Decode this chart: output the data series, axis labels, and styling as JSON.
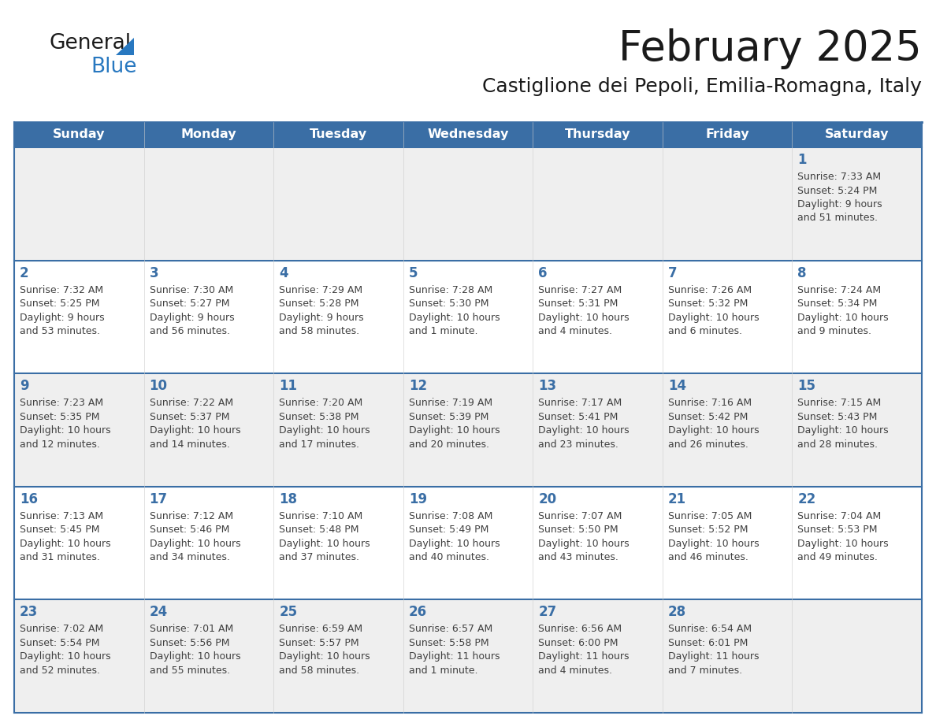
{
  "title": "February 2025",
  "subtitle": "Castiglione dei Pepoli, Emilia-Romagna, Italy",
  "days_of_week": [
    "Sunday",
    "Monday",
    "Tuesday",
    "Wednesday",
    "Thursday",
    "Friday",
    "Saturday"
  ],
  "header_bg_color": "#3A6EA5",
  "header_text_color": "#FFFFFF",
  "row_bg_light": "#EFEFEF",
  "row_bg_white": "#FFFFFF",
  "day_num_color": "#3A6EA5",
  "info_text_color": "#404040",
  "border_color": "#3A6EA5",
  "title_color": "#1A1A1A",
  "subtitle_color": "#1A1A1A",
  "logo_general_color": "#1A1A1A",
  "logo_blue_color": "#2878C0",
  "calendar_data": [
    {
      "day": 1,
      "col": 6,
      "row": 0,
      "sunrise": "7:33 AM",
      "sunset": "5:24 PM",
      "daylight_h": "9",
      "daylight_m": "51",
      "plural_m": true
    },
    {
      "day": 2,
      "col": 0,
      "row": 1,
      "sunrise": "7:32 AM",
      "sunset": "5:25 PM",
      "daylight_h": "9",
      "daylight_m": "53",
      "plural_m": true
    },
    {
      "day": 3,
      "col": 1,
      "row": 1,
      "sunrise": "7:30 AM",
      "sunset": "5:27 PM",
      "daylight_h": "9",
      "daylight_m": "56",
      "plural_m": true
    },
    {
      "day": 4,
      "col": 2,
      "row": 1,
      "sunrise": "7:29 AM",
      "sunset": "5:28 PM",
      "daylight_h": "9",
      "daylight_m": "58",
      "plural_m": true
    },
    {
      "day": 5,
      "col": 3,
      "row": 1,
      "sunrise": "7:28 AM",
      "sunset": "5:30 PM",
      "daylight_h": "10",
      "daylight_m": "1",
      "plural_m": false
    },
    {
      "day": 6,
      "col": 4,
      "row": 1,
      "sunrise": "7:27 AM",
      "sunset": "5:31 PM",
      "daylight_h": "10",
      "daylight_m": "4",
      "plural_m": true
    },
    {
      "day": 7,
      "col": 5,
      "row": 1,
      "sunrise": "7:26 AM",
      "sunset": "5:32 PM",
      "daylight_h": "10",
      "daylight_m": "6",
      "plural_m": true
    },
    {
      "day": 8,
      "col": 6,
      "row": 1,
      "sunrise": "7:24 AM",
      "sunset": "5:34 PM",
      "daylight_h": "10",
      "daylight_m": "9",
      "plural_m": true
    },
    {
      "day": 9,
      "col": 0,
      "row": 2,
      "sunrise": "7:23 AM",
      "sunset": "5:35 PM",
      "daylight_h": "10",
      "daylight_m": "12",
      "plural_m": true
    },
    {
      "day": 10,
      "col": 1,
      "row": 2,
      "sunrise": "7:22 AM",
      "sunset": "5:37 PM",
      "daylight_h": "10",
      "daylight_m": "14",
      "plural_m": true
    },
    {
      "day": 11,
      "col": 2,
      "row": 2,
      "sunrise": "7:20 AM",
      "sunset": "5:38 PM",
      "daylight_h": "10",
      "daylight_m": "17",
      "plural_m": true
    },
    {
      "day": 12,
      "col": 3,
      "row": 2,
      "sunrise": "7:19 AM",
      "sunset": "5:39 PM",
      "daylight_h": "10",
      "daylight_m": "20",
      "plural_m": true
    },
    {
      "day": 13,
      "col": 4,
      "row": 2,
      "sunrise": "7:17 AM",
      "sunset": "5:41 PM",
      "daylight_h": "10",
      "daylight_m": "23",
      "plural_m": true
    },
    {
      "day": 14,
      "col": 5,
      "row": 2,
      "sunrise": "7:16 AM",
      "sunset": "5:42 PM",
      "daylight_h": "10",
      "daylight_m": "26",
      "plural_m": true
    },
    {
      "day": 15,
      "col": 6,
      "row": 2,
      "sunrise": "7:15 AM",
      "sunset": "5:43 PM",
      "daylight_h": "10",
      "daylight_m": "28",
      "plural_m": true
    },
    {
      "day": 16,
      "col": 0,
      "row": 3,
      "sunrise": "7:13 AM",
      "sunset": "5:45 PM",
      "daylight_h": "10",
      "daylight_m": "31",
      "plural_m": true
    },
    {
      "day": 17,
      "col": 1,
      "row": 3,
      "sunrise": "7:12 AM",
      "sunset": "5:46 PM",
      "daylight_h": "10",
      "daylight_m": "34",
      "plural_m": true
    },
    {
      "day": 18,
      "col": 2,
      "row": 3,
      "sunrise": "7:10 AM",
      "sunset": "5:48 PM",
      "daylight_h": "10",
      "daylight_m": "37",
      "plural_m": true
    },
    {
      "day": 19,
      "col": 3,
      "row": 3,
      "sunrise": "7:08 AM",
      "sunset": "5:49 PM",
      "daylight_h": "10",
      "daylight_m": "40",
      "plural_m": true
    },
    {
      "day": 20,
      "col": 4,
      "row": 3,
      "sunrise": "7:07 AM",
      "sunset": "5:50 PM",
      "daylight_h": "10",
      "daylight_m": "43",
      "plural_m": true
    },
    {
      "day": 21,
      "col": 5,
      "row": 3,
      "sunrise": "7:05 AM",
      "sunset": "5:52 PM",
      "daylight_h": "10",
      "daylight_m": "46",
      "plural_m": true
    },
    {
      "day": 22,
      "col": 6,
      "row": 3,
      "sunrise": "7:04 AM",
      "sunset": "5:53 PM",
      "daylight_h": "10",
      "daylight_m": "49",
      "plural_m": true
    },
    {
      "day": 23,
      "col": 0,
      "row": 4,
      "sunrise": "7:02 AM",
      "sunset": "5:54 PM",
      "daylight_h": "10",
      "daylight_m": "52",
      "plural_m": true
    },
    {
      "day": 24,
      "col": 1,
      "row": 4,
      "sunrise": "7:01 AM",
      "sunset": "5:56 PM",
      "daylight_h": "10",
      "daylight_m": "55",
      "plural_m": true
    },
    {
      "day": 25,
      "col": 2,
      "row": 4,
      "sunrise": "6:59 AM",
      "sunset": "5:57 PM",
      "daylight_h": "10",
      "daylight_m": "58",
      "plural_m": true
    },
    {
      "day": 26,
      "col": 3,
      "row": 4,
      "sunrise": "6:57 AM",
      "sunset": "5:58 PM",
      "daylight_h": "11",
      "daylight_m": "1",
      "plural_m": false
    },
    {
      "day": 27,
      "col": 4,
      "row": 4,
      "sunrise": "6:56 AM",
      "sunset": "6:00 PM",
      "daylight_h": "11",
      "daylight_m": "4",
      "plural_m": true
    },
    {
      "day": 28,
      "col": 5,
      "row": 4,
      "sunrise": "6:54 AM",
      "sunset": "6:01 PM",
      "daylight_h": "11",
      "daylight_m": "7",
      "plural_m": true
    }
  ]
}
